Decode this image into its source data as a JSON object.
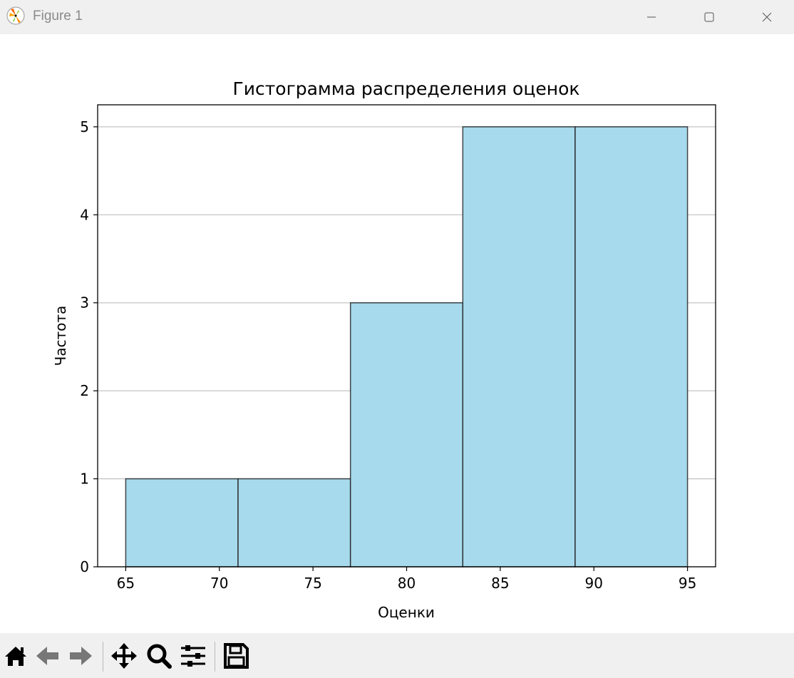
{
  "window": {
    "title": "Figure 1"
  },
  "toolbar": {
    "items": [
      "home-icon",
      "back-icon",
      "forward-icon",
      "pan-icon",
      "zoom-icon",
      "configure-subplots-icon",
      "save-icon"
    ]
  },
  "chart_data": {
    "type": "bar",
    "title": "Гистограмма распределения оценок",
    "xlabel": "Оценки",
    "ylabel": "Частота",
    "bin_edges": [
      65,
      71,
      77,
      83,
      89,
      95
    ],
    "values": [
      1,
      1,
      3,
      5,
      5
    ],
    "xlim": [
      63.5,
      96.5
    ],
    "ylim": [
      0,
      5.25
    ],
    "xticks": [
      65,
      70,
      75,
      80,
      85,
      90,
      95
    ],
    "yticks": [
      0,
      1,
      2,
      3,
      4,
      5
    ],
    "grid": "y",
    "bar_color": "#a8daed",
    "edge_color": "#1a1a1a"
  }
}
